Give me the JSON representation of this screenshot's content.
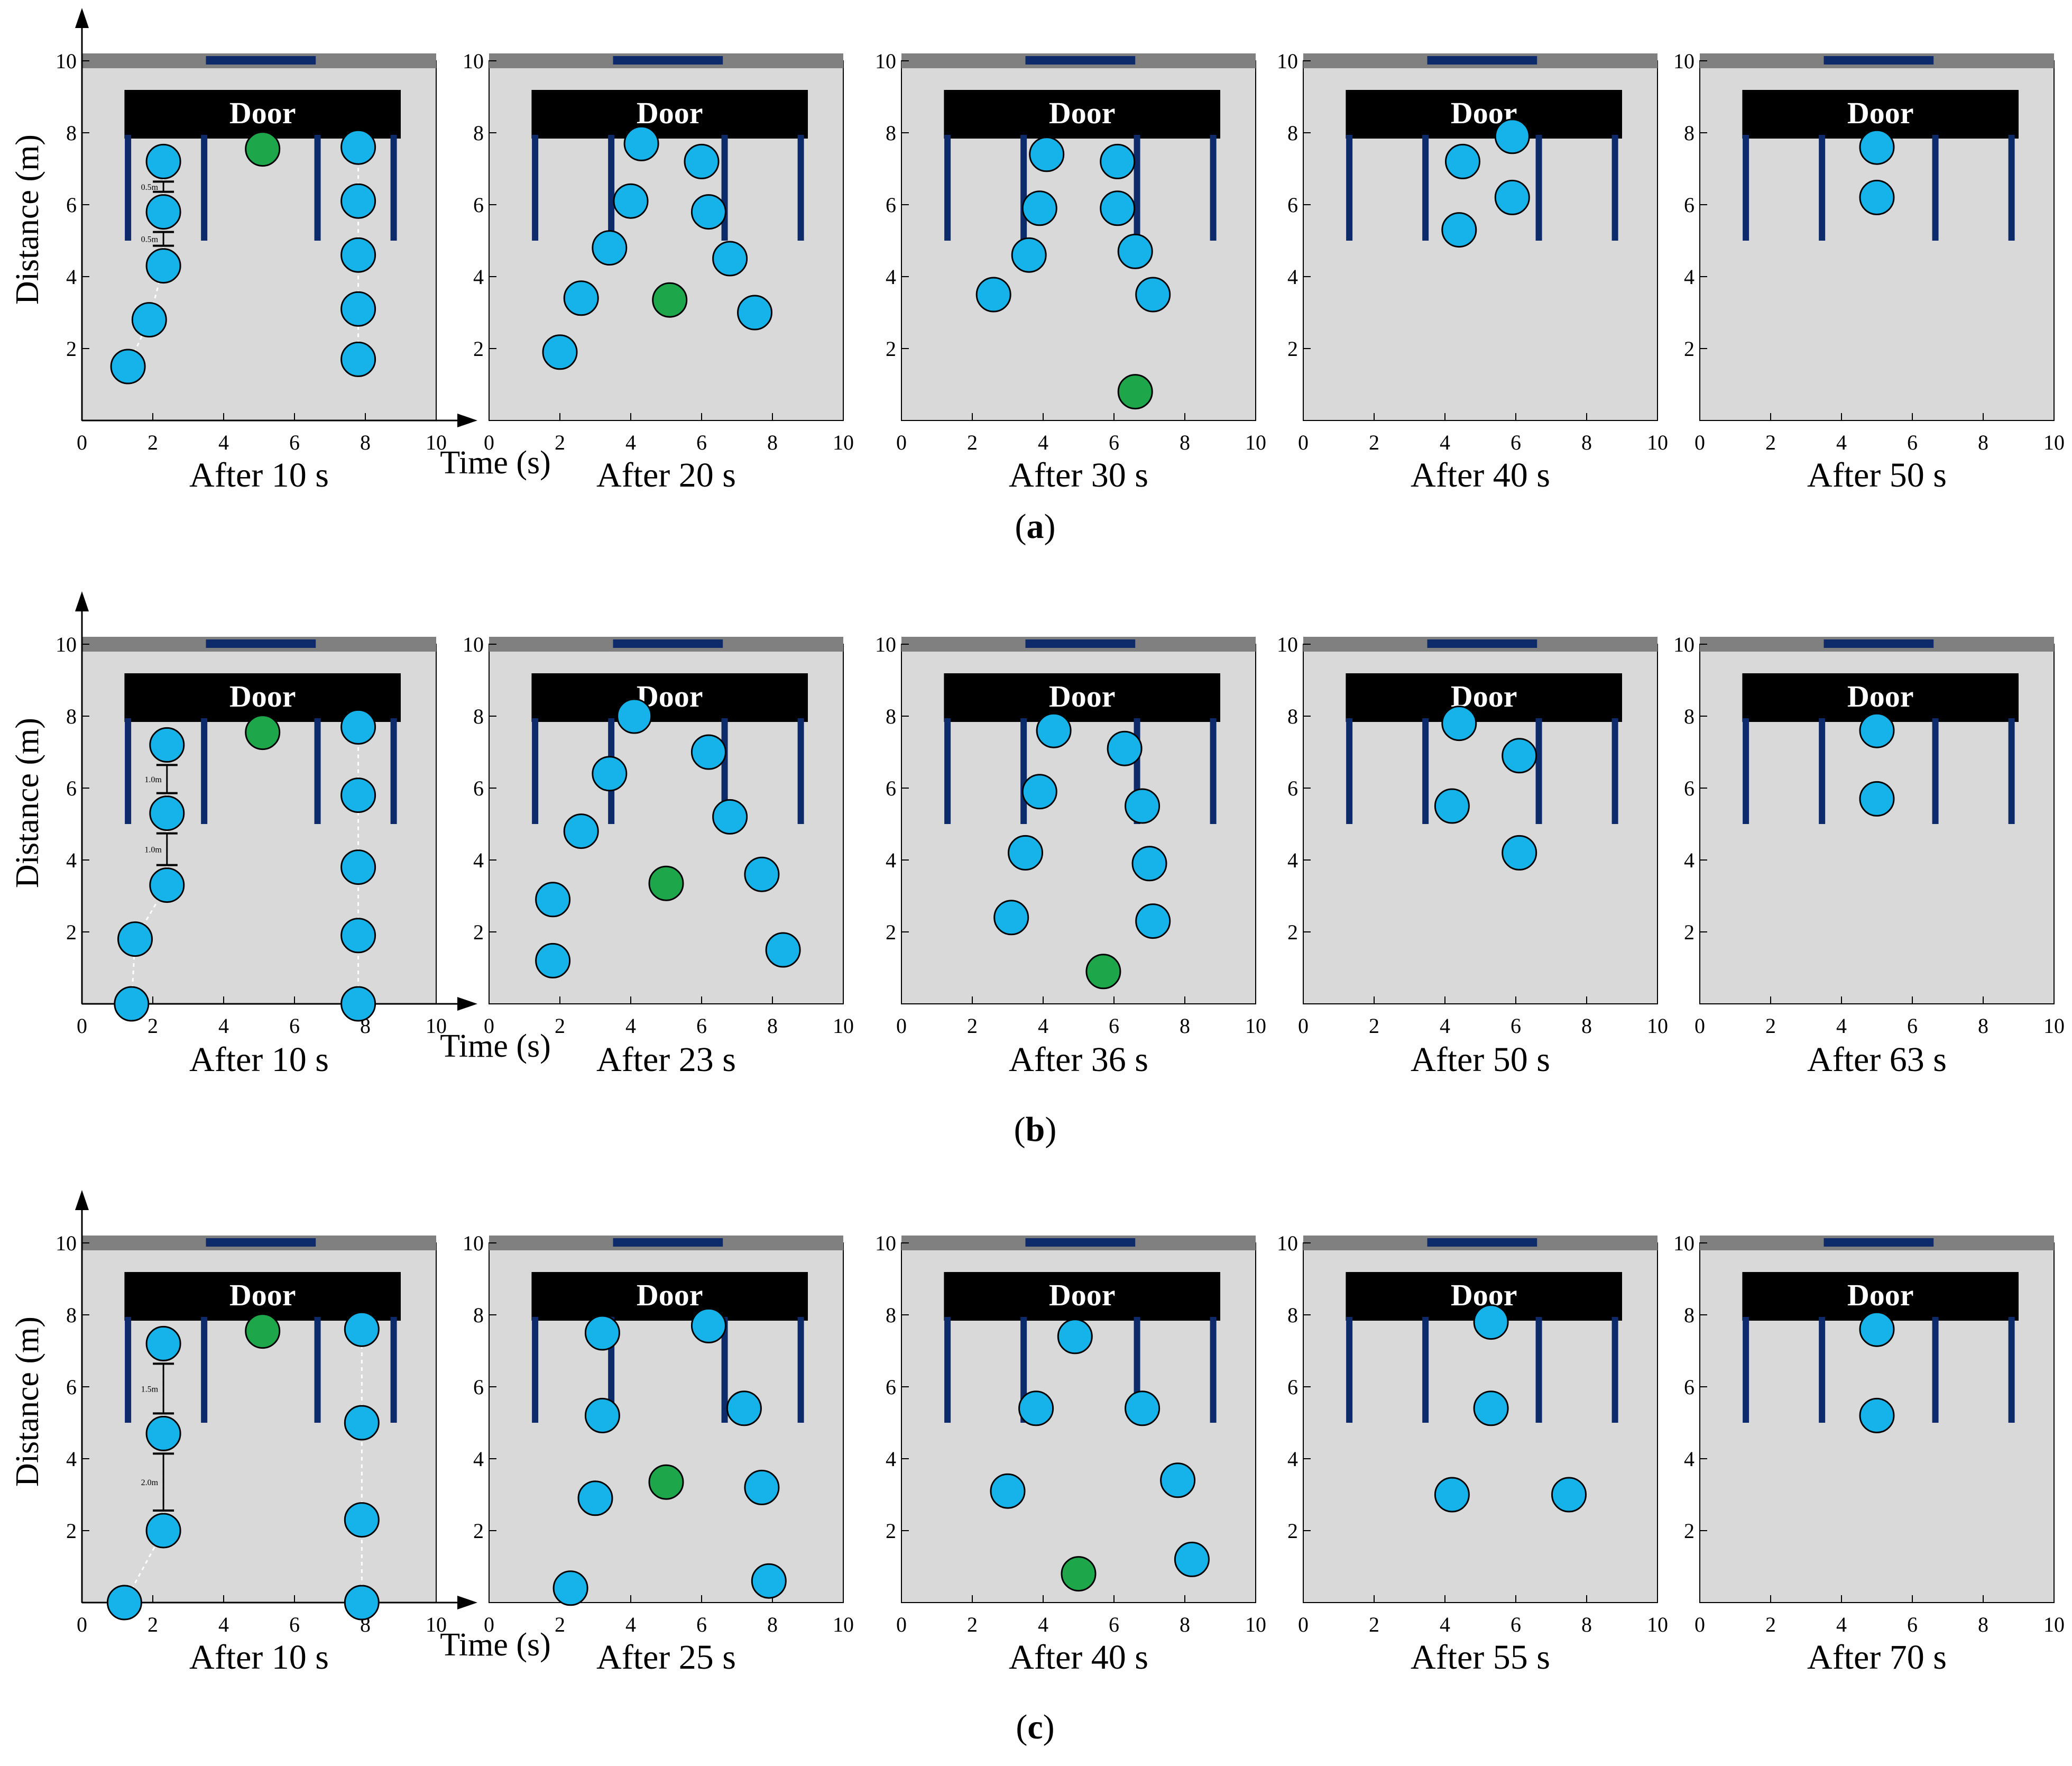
{
  "figure": {
    "y_axis_label": "Distance (m)",
    "x_axis_label": "Time (s)",
    "door_label": "Door",
    "ticks": [
      "0",
      "2",
      "4",
      "6",
      "8",
      "10"
    ],
    "y_ticks": [
      "2",
      "4",
      "6",
      "8",
      "10"
    ],
    "colors": {
      "room": "#d9d9d9",
      "wall": "#808080",
      "door_opening": "#0d2a6b",
      "door_block": "#000000",
      "partition": "#0d2a6b",
      "person": "#16b3ea",
      "leader": "#1da64a",
      "outline": "#000000"
    },
    "rows": [
      {
        "label": "a",
        "spacing_labels": [
          "0.5m",
          "0.5m"
        ],
        "panels": [
          {
            "caption": "After 10 s",
            "people": [
              [
                1.3,
                1.5
              ],
              [
                1.9,
                2.8
              ],
              [
                2.3,
                4.3
              ],
              [
                2.3,
                5.8
              ],
              [
                2.3,
                7.2
              ],
              [
                7.8,
                1.7
              ],
              [
                7.8,
                3.1
              ],
              [
                7.8,
                4.6
              ],
              [
                7.8,
                6.1
              ],
              [
                7.8,
                7.6
              ]
            ],
            "leader": [
              5.1,
              7.55
            ]
          },
          {
            "caption": "After 20 s",
            "people": [
              [
                2.0,
                1.9
              ],
              [
                2.6,
                3.4
              ],
              [
                3.4,
                4.8
              ],
              [
                4.0,
                6.1
              ],
              [
                4.3,
                7.7
              ],
              [
                6.0,
                7.2
              ],
              [
                6.2,
                5.8
              ],
              [
                6.8,
                4.5
              ],
              [
                7.5,
                3.0
              ]
            ],
            "leader": [
              5.1,
              3.35
            ]
          },
          {
            "caption": "After 30 s",
            "people": [
              [
                2.6,
                3.5
              ],
              [
                3.6,
                4.6
              ],
              [
                3.9,
                5.9
              ],
              [
                4.1,
                7.4
              ],
              [
                6.1,
                7.2
              ],
              [
                6.1,
                5.9
              ],
              [
                6.6,
                4.7
              ],
              [
                7.1,
                3.5
              ]
            ],
            "leader": [
              6.6,
              0.8
            ]
          },
          {
            "caption": "After 40 s",
            "people": [
              [
                4.5,
                7.2
              ],
              [
                4.4,
                5.3
              ],
              [
                5.9,
                7.9
              ],
              [
                5.9,
                6.2
              ]
            ],
            "leader": null
          },
          {
            "caption": "After 50 s",
            "people": [
              [
                5.0,
                7.6
              ],
              [
                5.0,
                6.2
              ]
            ],
            "leader": null
          }
        ]
      },
      {
        "label": "b",
        "spacing_labels": [
          "1.0m",
          "1.0m"
        ],
        "panels": [
          {
            "caption": "After 10 s",
            "people": [
              [
                1.4,
                0
              ],
              [
                1.5,
                1.8
              ],
              [
                2.4,
                3.3
              ],
              [
                2.4,
                5.3
              ],
              [
                2.4,
                7.2
              ],
              [
                7.8,
                0
              ],
              [
                7.8,
                1.9
              ],
              [
                7.8,
                3.8
              ],
              [
                7.8,
                5.8
              ],
              [
                7.8,
                7.7
              ]
            ],
            "leader": [
              5.1,
              7.55
            ]
          },
          {
            "caption": "After 23 s",
            "people": [
              [
                1.8,
                1.2
              ],
              [
                1.8,
                2.9
              ],
              [
                2.6,
                4.8
              ],
              [
                3.4,
                6.4
              ],
              [
                4.1,
                8.0
              ],
              [
                6.2,
                7.0
              ],
              [
                6.8,
                5.2
              ],
              [
                7.7,
                3.6
              ],
              [
                8.3,
                1.5
              ]
            ],
            "leader": [
              5.0,
              3.35
            ]
          },
          {
            "caption": "After 36 s",
            "people": [
              [
                3.1,
                2.4
              ],
              [
                3.5,
                4.2
              ],
              [
                3.9,
                5.9
              ],
              [
                4.3,
                7.6
              ],
              [
                6.3,
                7.1
              ],
              [
                6.8,
                5.5
              ],
              [
                7.0,
                3.9
              ],
              [
                7.1,
                2.3
              ]
            ],
            "leader": [
              5.7,
              0.9
            ]
          },
          {
            "caption": "After 50 s",
            "people": [
              [
                4.4,
                7.8
              ],
              [
                4.2,
                5.5
              ],
              [
                6.1,
                6.9
              ],
              [
                6.1,
                4.2
              ]
            ],
            "leader": null
          },
          {
            "caption": "After 63 s",
            "people": [
              [
                5.0,
                7.6
              ],
              [
                5.0,
                5.7
              ]
            ],
            "leader": null
          }
        ]
      },
      {
        "label": "c",
        "spacing_labels": [
          "1.5m",
          "2.0m"
        ],
        "panels": [
          {
            "caption": "After 10 s",
            "people": [
              [
                1.2,
                0
              ],
              [
                2.3,
                2.0
              ],
              [
                2.3,
                4.7
              ],
              [
                2.3,
                7.2
              ],
              [
                7.9,
                0
              ],
              [
                7.9,
                2.3
              ],
              [
                7.9,
                5.0
              ],
              [
                7.9,
                7.6
              ]
            ],
            "leader": [
              5.1,
              7.55
            ]
          },
          {
            "caption": "After 25 s",
            "people": [
              [
                2.3,
                0.4
              ],
              [
                3.0,
                2.9
              ],
              [
                3.2,
                5.2
              ],
              [
                3.2,
                7.5
              ],
              [
                6.2,
                7.7
              ],
              [
                7.2,
                5.4
              ],
              [
                7.7,
                3.2
              ],
              [
                7.9,
                0.6
              ]
            ],
            "leader": [
              5.0,
              3.35
            ]
          },
          {
            "caption": "After 40 s",
            "people": [
              [
                3.0,
                3.1
              ],
              [
                3.8,
                5.4
              ],
              [
                4.9,
                7.4
              ],
              [
                6.8,
                5.4
              ],
              [
                7.8,
                3.4
              ],
              [
                8.2,
                1.2
              ]
            ],
            "leader": [
              5.0,
              0.8
            ]
          },
          {
            "caption": "After 55 s",
            "people": [
              [
                5.3,
                7.8
              ],
              [
                5.3,
                5.4
              ],
              [
                4.2,
                3.0
              ],
              [
                7.5,
                3.0
              ]
            ],
            "leader": null
          },
          {
            "caption": "After 70 s",
            "people": [
              [
                5.0,
                7.6
              ],
              [
                5.0,
                5.2
              ]
            ],
            "leader": null
          }
        ]
      }
    ]
  }
}
